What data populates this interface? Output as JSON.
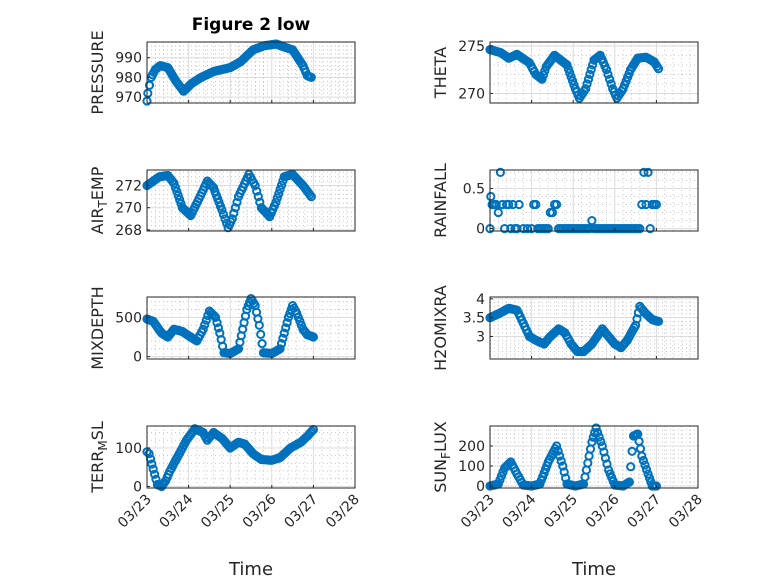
{
  "figure": {
    "title": "Figure 2 low",
    "x_label": "Time",
    "x_ticks": [
      "03/23",
      "03/24",
      "03/25",
      "03/26",
      "03/27",
      "03/28"
    ],
    "marker_color": "#0072bd"
  },
  "chart_data": [
    {
      "type": "scatter",
      "ylabel": "PRESSURE",
      "ylim": [
        967,
        998
      ],
      "yticks": [
        970,
        980,
        990
      ],
      "ytick_labels": [
        "970",
        "980",
        "990"
      ],
      "grid": true,
      "xlim": [
        0,
        5
      ],
      "keys": [
        [
          0,
          968
        ],
        [
          0.02,
          972
        ],
        [
          0.1,
          980
        ],
        [
          0.2,
          984
        ],
        [
          0.32,
          986
        ],
        [
          0.5,
          985
        ],
        [
          0.7,
          978
        ],
        [
          0.88,
          973
        ],
        [
          1.08,
          977
        ],
        [
          1.3,
          980
        ],
        [
          1.6,
          983
        ],
        [
          2.0,
          985
        ],
        [
          2.25,
          988
        ],
        [
          2.55,
          994
        ],
        [
          2.8,
          996
        ],
        [
          3.1,
          997
        ],
        [
          3.5,
          994
        ],
        [
          3.75,
          986
        ],
        [
          3.85,
          981
        ],
        [
          3.95,
          980
        ]
      ]
    },
    {
      "type": "scatter",
      "ylabel": "THETA",
      "ylim": [
        269,
        275.4
      ],
      "yticks": [
        270,
        275
      ],
      "ytick_labels": [
        "270",
        "275"
      ],
      "grid": true,
      "xlim": [
        0,
        5
      ],
      "keys": [
        [
          0,
          274.6
        ],
        [
          0.25,
          274.3
        ],
        [
          0.45,
          273.7
        ],
        [
          0.65,
          274.1
        ],
        [
          0.95,
          273.2
        ],
        [
          1.1,
          272.0
        ],
        [
          1.25,
          271.5
        ],
        [
          1.35,
          272.8
        ],
        [
          1.55,
          274.0
        ],
        [
          1.85,
          273.0
        ],
        [
          2.05,
          270.5
        ],
        [
          2.15,
          269.5
        ],
        [
          2.3,
          270.5
        ],
        [
          2.5,
          273.5
        ],
        [
          2.65,
          274.0
        ],
        [
          2.8,
          272.5
        ],
        [
          2.95,
          270.5
        ],
        [
          3.05,
          269.5
        ],
        [
          3.2,
          270.5
        ],
        [
          3.38,
          272.5
        ],
        [
          3.55,
          273.7
        ],
        [
          3.75,
          273.8
        ],
        [
          3.95,
          273.3
        ],
        [
          4.05,
          272.6
        ]
      ]
    },
    {
      "type": "scatter",
      "ylabel": "AIR_TEMP",
      "ylim": [
        267.9,
        273.4
      ],
      "yticks": [
        268,
        270,
        272
      ],
      "ytick_labels": [
        "268",
        "270",
        "272"
      ],
      "grid": true,
      "xlim": [
        0,
        5
      ],
      "keys": [
        [
          0,
          272.0
        ],
        [
          0.3,
          272.8
        ],
        [
          0.5,
          272.9
        ],
        [
          0.65,
          272.2
        ],
        [
          0.85,
          270.0
        ],
        [
          1.05,
          269.3
        ],
        [
          1.25,
          270.8
        ],
        [
          1.45,
          272.4
        ],
        [
          1.6,
          271.8
        ],
        [
          1.8,
          269.8
        ],
        [
          1.95,
          268.2
        ],
        [
          2.05,
          269.0
        ],
        [
          2.2,
          271.0
        ],
        [
          2.45,
          273.0
        ],
        [
          2.6,
          272.0
        ],
        [
          2.75,
          270.0
        ],
        [
          2.95,
          269.2
        ],
        [
          3.1,
          270.5
        ],
        [
          3.3,
          272.8
        ],
        [
          3.5,
          273.0
        ],
        [
          3.75,
          272.0
        ],
        [
          3.95,
          271.0
        ]
      ]
    },
    {
      "type": "scatter",
      "ylabel": "RAINFALL",
      "ylim": [
        -0.03,
        0.73
      ],
      "yticks": [
        0,
        0.5
      ],
      "ytick_labels": [
        "0",
        "0.5"
      ],
      "grid": true,
      "xlim": [
        0,
        5
      ],
      "points": [
        [
          0,
          0
        ],
        [
          0.02,
          0.4
        ],
        [
          0.05,
          0.3
        ],
        [
          0.1,
          0.3
        ],
        [
          0.15,
          0.3
        ],
        [
          0.2,
          0.2
        ],
        [
          0.25,
          0.7
        ],
        [
          0.3,
          0.3
        ],
        [
          0.35,
          0
        ],
        [
          0.4,
          0.3
        ],
        [
          0.45,
          0.3
        ],
        [
          0.5,
          0
        ],
        [
          0.55,
          0.3
        ],
        [
          0.6,
          0
        ],
        [
          0.65,
          0
        ],
        [
          0.7,
          0.3
        ],
        [
          0.8,
          0
        ],
        [
          0.9,
          0
        ],
        [
          1.0,
          0
        ],
        [
          1.05,
          0.3
        ],
        [
          1.1,
          0.3
        ],
        [
          1.15,
          0
        ],
        [
          1.2,
          0
        ],
        [
          1.25,
          0
        ],
        [
          1.3,
          0
        ],
        [
          1.35,
          0
        ],
        [
          1.4,
          0
        ],
        [
          1.45,
          0.2
        ],
        [
          1.5,
          0.2
        ],
        [
          1.55,
          0.3
        ],
        [
          1.6,
          0.3
        ],
        [
          1.65,
          0
        ],
        [
          1.7,
          0
        ],
        [
          1.75,
          0
        ],
        [
          1.8,
          0
        ],
        [
          1.85,
          0
        ],
        [
          1.9,
          0
        ],
        [
          1.95,
          0
        ],
        [
          2.0,
          0
        ],
        [
          2.05,
          0
        ],
        [
          2.1,
          0
        ],
        [
          2.15,
          0
        ],
        [
          2.2,
          0
        ],
        [
          2.25,
          0
        ],
        [
          2.3,
          0
        ],
        [
          2.35,
          0
        ],
        [
          2.4,
          0
        ],
        [
          2.45,
          0.1
        ],
        [
          2.5,
          0
        ],
        [
          2.55,
          0
        ],
        [
          2.6,
          0
        ],
        [
          2.65,
          0
        ],
        [
          2.7,
          0
        ],
        [
          2.75,
          0
        ],
        [
          2.8,
          0
        ],
        [
          2.85,
          0
        ],
        [
          2.9,
          0
        ],
        [
          2.95,
          0
        ],
        [
          3.0,
          0
        ],
        [
          3.05,
          0
        ],
        [
          3.1,
          0
        ],
        [
          3.15,
          0
        ],
        [
          3.2,
          0
        ],
        [
          3.25,
          0
        ],
        [
          3.3,
          0
        ],
        [
          3.35,
          0
        ],
        [
          3.4,
          0
        ],
        [
          3.45,
          0
        ],
        [
          3.5,
          0
        ],
        [
          3.55,
          0
        ],
        [
          3.6,
          0
        ],
        [
          3.65,
          0.3
        ],
        [
          3.7,
          0.7
        ],
        [
          3.75,
          0.3
        ],
        [
          3.8,
          0.7
        ],
        [
          3.85,
          0
        ],
        [
          3.9,
          0.3
        ],
        [
          3.95,
          0.3
        ],
        [
          4.0,
          0.3
        ]
      ]
    },
    {
      "type": "scatter",
      "ylabel": "MIXDEPTH",
      "ylim": [
        -30,
        760
      ],
      "yticks": [
        0,
        500
      ],
      "ytick_labels": [
        "0",
        "500"
      ],
      "grid": true,
      "xlim": [
        0,
        5
      ],
      "keys": [
        [
          0,
          480
        ],
        [
          0.15,
          450
        ],
        [
          0.35,
          300
        ],
        [
          0.5,
          250
        ],
        [
          0.65,
          350
        ],
        [
          0.85,
          320
        ],
        [
          1.05,
          250
        ],
        [
          1.2,
          200
        ],
        [
          1.35,
          350
        ],
        [
          1.5,
          580
        ],
        [
          1.65,
          500
        ],
        [
          1.75,
          300
        ],
        [
          1.85,
          50
        ],
        [
          2.0,
          40
        ],
        [
          2.2,
          100
        ],
        [
          2.4,
          600
        ],
        [
          2.5,
          740
        ],
        [
          2.6,
          650
        ],
        [
          2.7,
          400
        ],
        [
          2.8,
          50
        ],
        [
          3.0,
          40
        ],
        [
          3.2,
          100
        ],
        [
          3.4,
          500
        ],
        [
          3.5,
          650
        ],
        [
          3.6,
          550
        ],
        [
          3.75,
          350
        ],
        [
          3.85,
          280
        ],
        [
          4.0,
          250
        ]
      ]
    },
    {
      "type": "scatter",
      "ylabel": "H2OMIXRA",
      "ylim": [
        2.4,
        4.05
      ],
      "yticks": [
        3,
        3.5,
        4
      ],
      "ytick_labels": [
        "3",
        "3.5",
        "4"
      ],
      "grid": true,
      "xlim": [
        0,
        5
      ],
      "keys": [
        [
          0,
          3.5
        ],
        [
          0.2,
          3.6
        ],
        [
          0.45,
          3.75
        ],
        [
          0.65,
          3.7
        ],
        [
          0.8,
          3.35
        ],
        [
          0.95,
          3.0
        ],
        [
          1.1,
          2.9
        ],
        [
          1.3,
          2.8
        ],
        [
          1.45,
          3.0
        ],
        [
          1.65,
          3.2
        ],
        [
          1.8,
          3.1
        ],
        [
          1.95,
          2.8
        ],
        [
          2.1,
          2.6
        ],
        [
          2.25,
          2.6
        ],
        [
          2.45,
          2.8
        ],
        [
          2.7,
          3.2
        ],
        [
          2.85,
          3.0
        ],
        [
          3.0,
          2.8
        ],
        [
          3.15,
          2.7
        ],
        [
          3.3,
          2.9
        ],
        [
          3.5,
          3.3
        ],
        [
          3.6,
          3.8
        ],
        [
          3.75,
          3.6
        ],
        [
          3.9,
          3.45
        ],
        [
          4.05,
          3.4
        ]
      ]
    },
    {
      "type": "scatter",
      "ylabel": "TERR_MSL",
      "ylim": [
        -4,
        157
      ],
      "yticks": [
        0,
        100
      ],
      "ytick_labels": [
        "0",
        "100"
      ],
      "grid": true,
      "xlim": [
        0,
        5
      ],
      "keys": [
        [
          0,
          90
        ],
        [
          0.05,
          85
        ],
        [
          0.15,
          45
        ],
        [
          0.25,
          5
        ],
        [
          0.35,
          0
        ],
        [
          0.45,
          15
        ],
        [
          0.55,
          40
        ],
        [
          0.75,
          80
        ],
        [
          0.95,
          120
        ],
        [
          1.15,
          150
        ],
        [
          1.35,
          140
        ],
        [
          1.45,
          120
        ],
        [
          1.6,
          140
        ],
        [
          1.8,
          125
        ],
        [
          2.0,
          100
        ],
        [
          2.2,
          115
        ],
        [
          2.35,
          110
        ],
        [
          2.55,
          85
        ],
        [
          2.75,
          70
        ],
        [
          3.0,
          68
        ],
        [
          3.2,
          75
        ],
        [
          3.45,
          100
        ],
        [
          3.7,
          115
        ],
        [
          3.85,
          130
        ],
        [
          4.0,
          148
        ]
      ]
    },
    {
      "type": "scatter",
      "ylabel": "SUN_FLUX",
      "ylim": [
        -10,
        300
      ],
      "yticks": [
        0,
        100,
        200
      ],
      "ytick_labels": [
        "0",
        "100",
        "200"
      ],
      "grid": true,
      "xlim": [
        0,
        5
      ],
      "keys": [
        [
          0,
          0
        ],
        [
          0.2,
          10
        ],
        [
          0.35,
          90
        ],
        [
          0.5,
          120
        ],
        [
          0.65,
          60
        ],
        [
          0.8,
          5
        ],
        [
          1.0,
          0
        ],
        [
          1.2,
          10
        ],
        [
          1.4,
          120
        ],
        [
          1.6,
          200
        ],
        [
          1.75,
          100
        ],
        [
          1.85,
          10
        ],
        [
          2.05,
          0
        ],
        [
          2.25,
          10
        ],
        [
          2.45,
          220
        ],
        [
          2.55,
          290
        ],
        [
          2.7,
          200
        ],
        [
          2.85,
          80
        ],
        [
          3.0,
          5
        ],
        [
          3.2,
          0
        ],
        [
          3.35,
          20
        ],
        [
          3.45,
          250
        ],
        [
          3.55,
          260
        ],
        [
          3.65,
          150
        ],
        [
          3.8,
          60
        ],
        [
          3.9,
          0
        ],
        [
          4.0,
          0
        ]
      ]
    }
  ]
}
